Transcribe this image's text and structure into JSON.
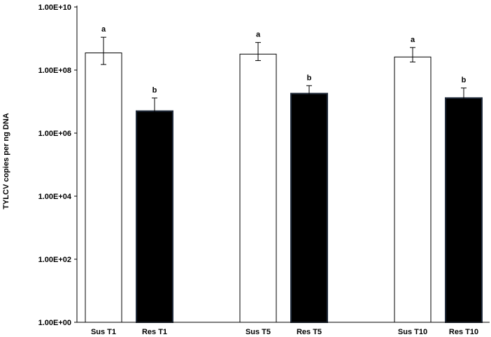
{
  "chart_data": {
    "type": "bar",
    "ylabel": "TYLCV copies per ng DNA",
    "xlabel": "",
    "y_scale": "log10",
    "ylim": [
      1,
      10000000000
    ],
    "y_ticks": [
      {
        "value": 1,
        "label": "1.00E+00"
      },
      {
        "value": 100,
        "label": "1.00E+02"
      },
      {
        "value": 10000,
        "label": "1.00E+04"
      },
      {
        "value": 1000000,
        "label": "1.00E+06"
      },
      {
        "value": 100000000,
        "label": "1.00E+08"
      },
      {
        "value": 10000000000,
        "label": "1.00E+10"
      }
    ],
    "grid": false,
    "legend": "none",
    "bars": [
      {
        "category": "Sus T1",
        "value": 350000000,
        "error_low": 150000000,
        "error_high": 1100000000,
        "significance": "a",
        "fill": "#ffffff",
        "group": 0
      },
      {
        "category": "Res T1",
        "value": 5000000,
        "error_low": 2500000,
        "error_high": 13000000,
        "significance": "b",
        "fill": "#000000",
        "group": 0
      },
      {
        "category": "Sus T5",
        "value": 320000000,
        "error_low": 200000000,
        "error_high": 750000000,
        "significance": "a",
        "fill": "#ffffff",
        "group": 1
      },
      {
        "category": "Res T5",
        "value": 18000000,
        "error_low": 11000000,
        "error_high": 32000000,
        "significance": "b",
        "fill": "#000000",
        "group": 1
      },
      {
        "category": "Sus T10",
        "value": 260000000,
        "error_low": 180000000,
        "error_high": 520000000,
        "significance": "a",
        "fill": "#ffffff",
        "group": 2
      },
      {
        "category": "Res T10",
        "value": 13000000,
        "error_low": 7000000,
        "error_high": 27000000,
        "significance": "b",
        "fill": "#000000",
        "group": 2
      }
    ]
  }
}
